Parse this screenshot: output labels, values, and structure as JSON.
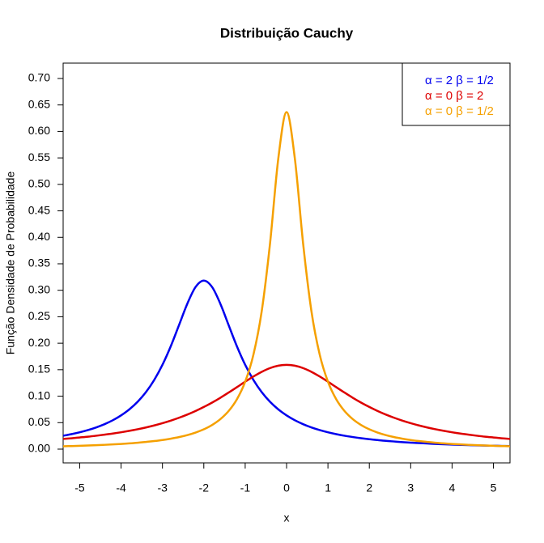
{
  "chart_data": {
    "type": "line",
    "title": "Distribuição Cauchy",
    "x_label": "x",
    "y_label": "Função Densidade de Probabilidade",
    "x": [
      -5.4,
      -5.2,
      -5,
      -4.8,
      -4.6,
      -4.4,
      -4.2,
      -4,
      -3.8,
      -3.6,
      -3.4,
      -3.2,
      -3,
      -2.8,
      -2.6,
      -2.4,
      -2.2,
      -2,
      -1.8,
      -1.6,
      -1.4,
      -1.2,
      -1,
      -0.8,
      -0.6,
      -0.4,
      -0.2,
      0,
      0.2,
      0.4,
      0.6,
      0.8,
      1,
      1.2,
      1.4,
      1.6,
      1.8,
      2,
      2.2,
      2.4,
      2.6,
      2.8,
      3,
      3.2,
      3.4,
      3.6,
      3.8,
      4,
      4.2,
      4.4,
      4.6,
      4.8,
      5,
      5.2,
      5.4
    ],
    "series": [
      {
        "name": "α = 2  β = 1/2",
        "color": "#0000ee",
        "values": [
          0.0253,
          0.0283,
          0.0318,
          0.036,
          0.041,
          0.0471,
          0.0545,
          0.0637,
          0.0751,
          0.0894,
          0.1075,
          0.1305,
          0.1592,
          0.1941,
          0.2341,
          0.2744,
          0.3061,
          0.3183,
          0.3061,
          0.2744,
          0.2341,
          0.1941,
          0.1592,
          0.1305,
          0.1075,
          0.0894,
          0.0751,
          0.0637,
          0.0545,
          0.0471,
          0.041,
          0.036,
          0.0318,
          0.0283,
          0.0253,
          0.0228,
          0.0206,
          0.0187,
          0.0171,
          0.0156,
          0.0144,
          0.0132,
          0.0122,
          0.0114,
          0.0106,
          0.0098,
          0.0092,
          0.0086,
          0.0081,
          0.0076,
          0.0071,
          0.0067,
          0.0064,
          0.006,
          0.0057
        ]
      },
      {
        "name": "α = 0  β = 2",
        "color": "#dd0000",
        "values": [
          0.0192,
          0.0205,
          0.022,
          0.0235,
          0.0253,
          0.0273,
          0.0294,
          0.0318,
          0.0345,
          0.0375,
          0.0409,
          0.0447,
          0.049,
          0.0538,
          0.0592,
          0.0652,
          0.072,
          0.0796,
          0.0879,
          0.097,
          0.1068,
          0.117,
          0.1273,
          0.1372,
          0.146,
          0.153,
          0.1576,
          0.1592,
          0.1576,
          0.153,
          0.146,
          0.1372,
          0.1273,
          0.117,
          0.1068,
          0.097,
          0.0879,
          0.0796,
          0.072,
          0.0652,
          0.0592,
          0.0538,
          0.049,
          0.0447,
          0.0409,
          0.0375,
          0.0345,
          0.0318,
          0.0294,
          0.0273,
          0.0253,
          0.0235,
          0.022,
          0.0205,
          0.0192
        ]
      },
      {
        "name": "α = 0  β = 1/2",
        "color": "#f5a000",
        "values": [
          0.0054,
          0.0058,
          0.0063,
          0.0068,
          0.0074,
          0.0081,
          0.0089,
          0.0098,
          0.0108,
          0.012,
          0.0135,
          0.0152,
          0.0172,
          0.0197,
          0.0227,
          0.0265,
          0.0313,
          0.0374,
          0.0456,
          0.0566,
          0.072,
          0.0942,
          0.1273,
          0.1788,
          0.2609,
          0.3882,
          0.5488,
          0.6366,
          0.5488,
          0.3882,
          0.2609,
          0.1788,
          0.1273,
          0.0942,
          0.072,
          0.0566,
          0.0456,
          0.0374,
          0.0313,
          0.0265,
          0.0227,
          0.0197,
          0.0172,
          0.0152,
          0.0135,
          0.012,
          0.0108,
          0.0098,
          0.0089,
          0.0081,
          0.0074,
          0.0068,
          0.0063,
          0.0058,
          0.0054
        ]
      }
    ],
    "xlim": [
      -5.4,
      5.4
    ],
    "ylim": [
      -0.026,
      0.729
    ],
    "xticks": [
      -5,
      -4,
      -3,
      -2,
      -1,
      0,
      1,
      2,
      3,
      4,
      5
    ],
    "yticks": [
      {
        "value": 0,
        "label": "0.00"
      },
      {
        "value": 0.05,
        "label": "0.05"
      },
      {
        "value": 0.1,
        "label": "0.10"
      },
      {
        "value": 0.15,
        "label": "0.15"
      },
      {
        "value": 0.2,
        "label": "0.20"
      },
      {
        "value": 0.25,
        "label": "0.25"
      },
      {
        "value": 0.3,
        "label": "0.30"
      },
      {
        "value": 0.35,
        "label": "0.35"
      },
      {
        "value": 0.4,
        "label": "0.40"
      },
      {
        "value": 0.45,
        "label": "0.45"
      },
      {
        "value": 0.5,
        "label": "0.50"
      },
      {
        "value": 0.55,
        "label": "0.55"
      },
      {
        "value": 0.6,
        "label": "0.60"
      },
      {
        "value": 0.65,
        "label": "0.65"
      },
      {
        "value": 0.7,
        "label": "0.70"
      }
    ],
    "legend_position": "top-right",
    "grid": false
  }
}
